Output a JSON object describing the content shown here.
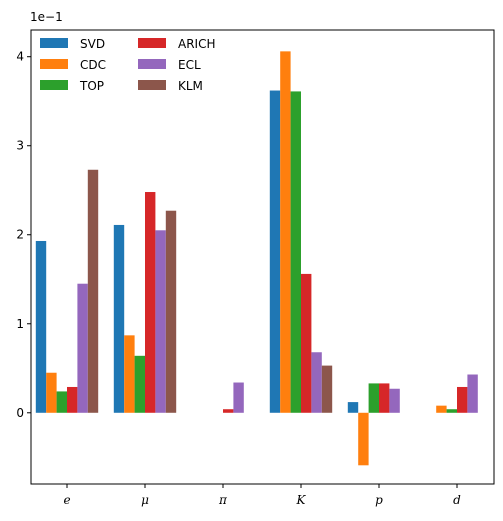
{
  "chart_data": {
    "type": "bar",
    "categories": [
      "e",
      "μ",
      "π",
      "K",
      "p",
      "d"
    ],
    "series": [
      {
        "name": "SVD",
        "color": "#1f77b4",
        "values": [
          0.193,
          0.211,
          0.0,
          0.362,
          0.012,
          0.0
        ]
      },
      {
        "name": "CDC",
        "color": "#ff7f0e",
        "values": [
          0.045,
          0.087,
          0.0,
          0.406,
          -0.059,
          0.008
        ]
      },
      {
        "name": "TOP",
        "color": "#2ca02c",
        "values": [
          0.024,
          0.064,
          0.0,
          0.361,
          0.033,
          0.004
        ]
      },
      {
        "name": "ARICH",
        "color": "#d62728",
        "values": [
          0.029,
          0.248,
          0.004,
          0.156,
          0.033,
          0.029
        ]
      },
      {
        "name": "ECL",
        "color": "#9467bd",
        "values": [
          0.145,
          0.205,
          0.034,
          0.068,
          0.027,
          0.043
        ]
      },
      {
        "name": "KLM",
        "color": "#8c564b",
        "values": [
          0.273,
          0.227,
          0.0,
          0.053,
          0.0,
          0.0
        ]
      }
    ],
    "ylim": [
      -0.08,
      0.43
    ],
    "yticks": [
      0,
      0.1,
      0.2,
      0.3,
      0.4
    ],
    "ytick_labels": [
      "0",
      "1",
      "2",
      "3",
      "4"
    ],
    "y_offset_label": "1e−1",
    "title": "",
    "xlabel": "",
    "ylabel": "",
    "grid": false,
    "legend": {
      "placement": "top-left",
      "columns": 2,
      "frame": false
    }
  }
}
